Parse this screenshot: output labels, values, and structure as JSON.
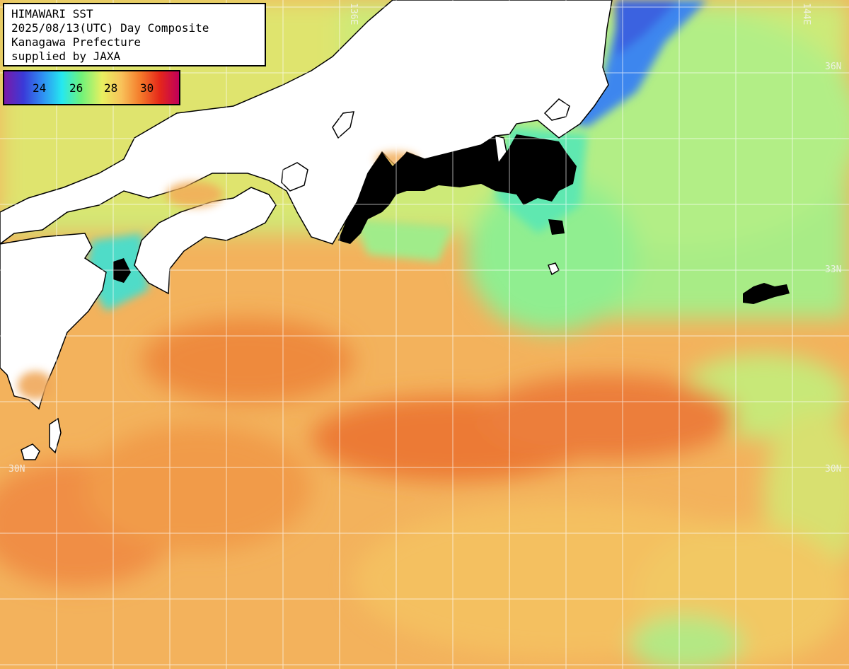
{
  "title": {
    "line1": "HIMAWARI SST",
    "line2": "2025/08/13(UTC) Day Composite",
    "line3": "Kanagawa Prefecture",
    "line4": "supplied by JAXA"
  },
  "legend": {
    "ticks": [
      "24",
      "26",
      "28",
      "30"
    ],
    "colors": [
      "#7a1aa8",
      "#3a3ad8",
      "#2f8ff2",
      "#25e8f0",
      "#6ef27a",
      "#e8f060",
      "#f8c25a",
      "#f47a2a",
      "#e5271a",
      "#c0005a"
    ]
  },
  "grid_labels": {
    "lon_136e": "136E",
    "lon_144e": "144E",
    "lat_36n": "36N",
    "lat_33n": "33N",
    "lat_30n_left": "30N",
    "lat_30n_right": "30N"
  },
  "colors": {
    "land": "#ffffff",
    "cloud_mask": "#000000",
    "sea_warm": "#f2a050",
    "sea_hot": "#ee7a38",
    "sea_cool": "#8ef08a",
    "sea_cold": "#3a8af0"
  }
}
